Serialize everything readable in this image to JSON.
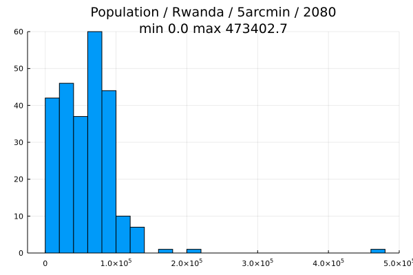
{
  "chart_data": {
    "type": "bar",
    "title_line1": "Population / Rwanda / 5arcmin / 2080",
    "title_line2": "min 0.0  max 473402.7",
    "xlabel": "",
    "ylabel": "",
    "bin_width": 20000,
    "bins": [
      {
        "x0": 0,
        "x1": 20000,
        "count": 42
      },
      {
        "x0": 20000,
        "x1": 40000,
        "count": 46
      },
      {
        "x0": 40000,
        "x1": 60000,
        "count": 37
      },
      {
        "x0": 60000,
        "x1": 80000,
        "count": 60
      },
      {
        "x0": 80000,
        "x1": 100000,
        "count": 44
      },
      {
        "x0": 100000,
        "x1": 120000,
        "count": 10
      },
      {
        "x0": 120000,
        "x1": 140000,
        "count": 7
      },
      {
        "x0": 140000,
        "x1": 160000,
        "count": 0
      },
      {
        "x0": 160000,
        "x1": 180000,
        "count": 1
      },
      {
        "x0": 180000,
        "x1": 200000,
        "count": 0
      },
      {
        "x0": 200000,
        "x1": 220000,
        "count": 1
      },
      {
        "x0": 460000,
        "x1": 480000,
        "count": 1
      }
    ],
    "xlim": [
      -25000,
      500000
    ],
    "ylim": [
      0,
      60
    ],
    "x_ticks": [
      {
        "value": 0,
        "mantissa": "0",
        "exp": ""
      },
      {
        "value": 100000,
        "mantissa": "1.0×10",
        "exp": "5"
      },
      {
        "value": 200000,
        "mantissa": "2.0×10",
        "exp": "5"
      },
      {
        "value": 300000,
        "mantissa": "3.0×10",
        "exp": "5"
      },
      {
        "value": 400000,
        "mantissa": "4.0×10",
        "exp": "5"
      },
      {
        "value": 500000,
        "mantissa": "5.0×10",
        "exp": "5"
      }
    ],
    "y_ticks": [
      0,
      10,
      20,
      30,
      40,
      50,
      60
    ],
    "grid": true,
    "legend": "none",
    "bar_color": "#009AF9"
  }
}
